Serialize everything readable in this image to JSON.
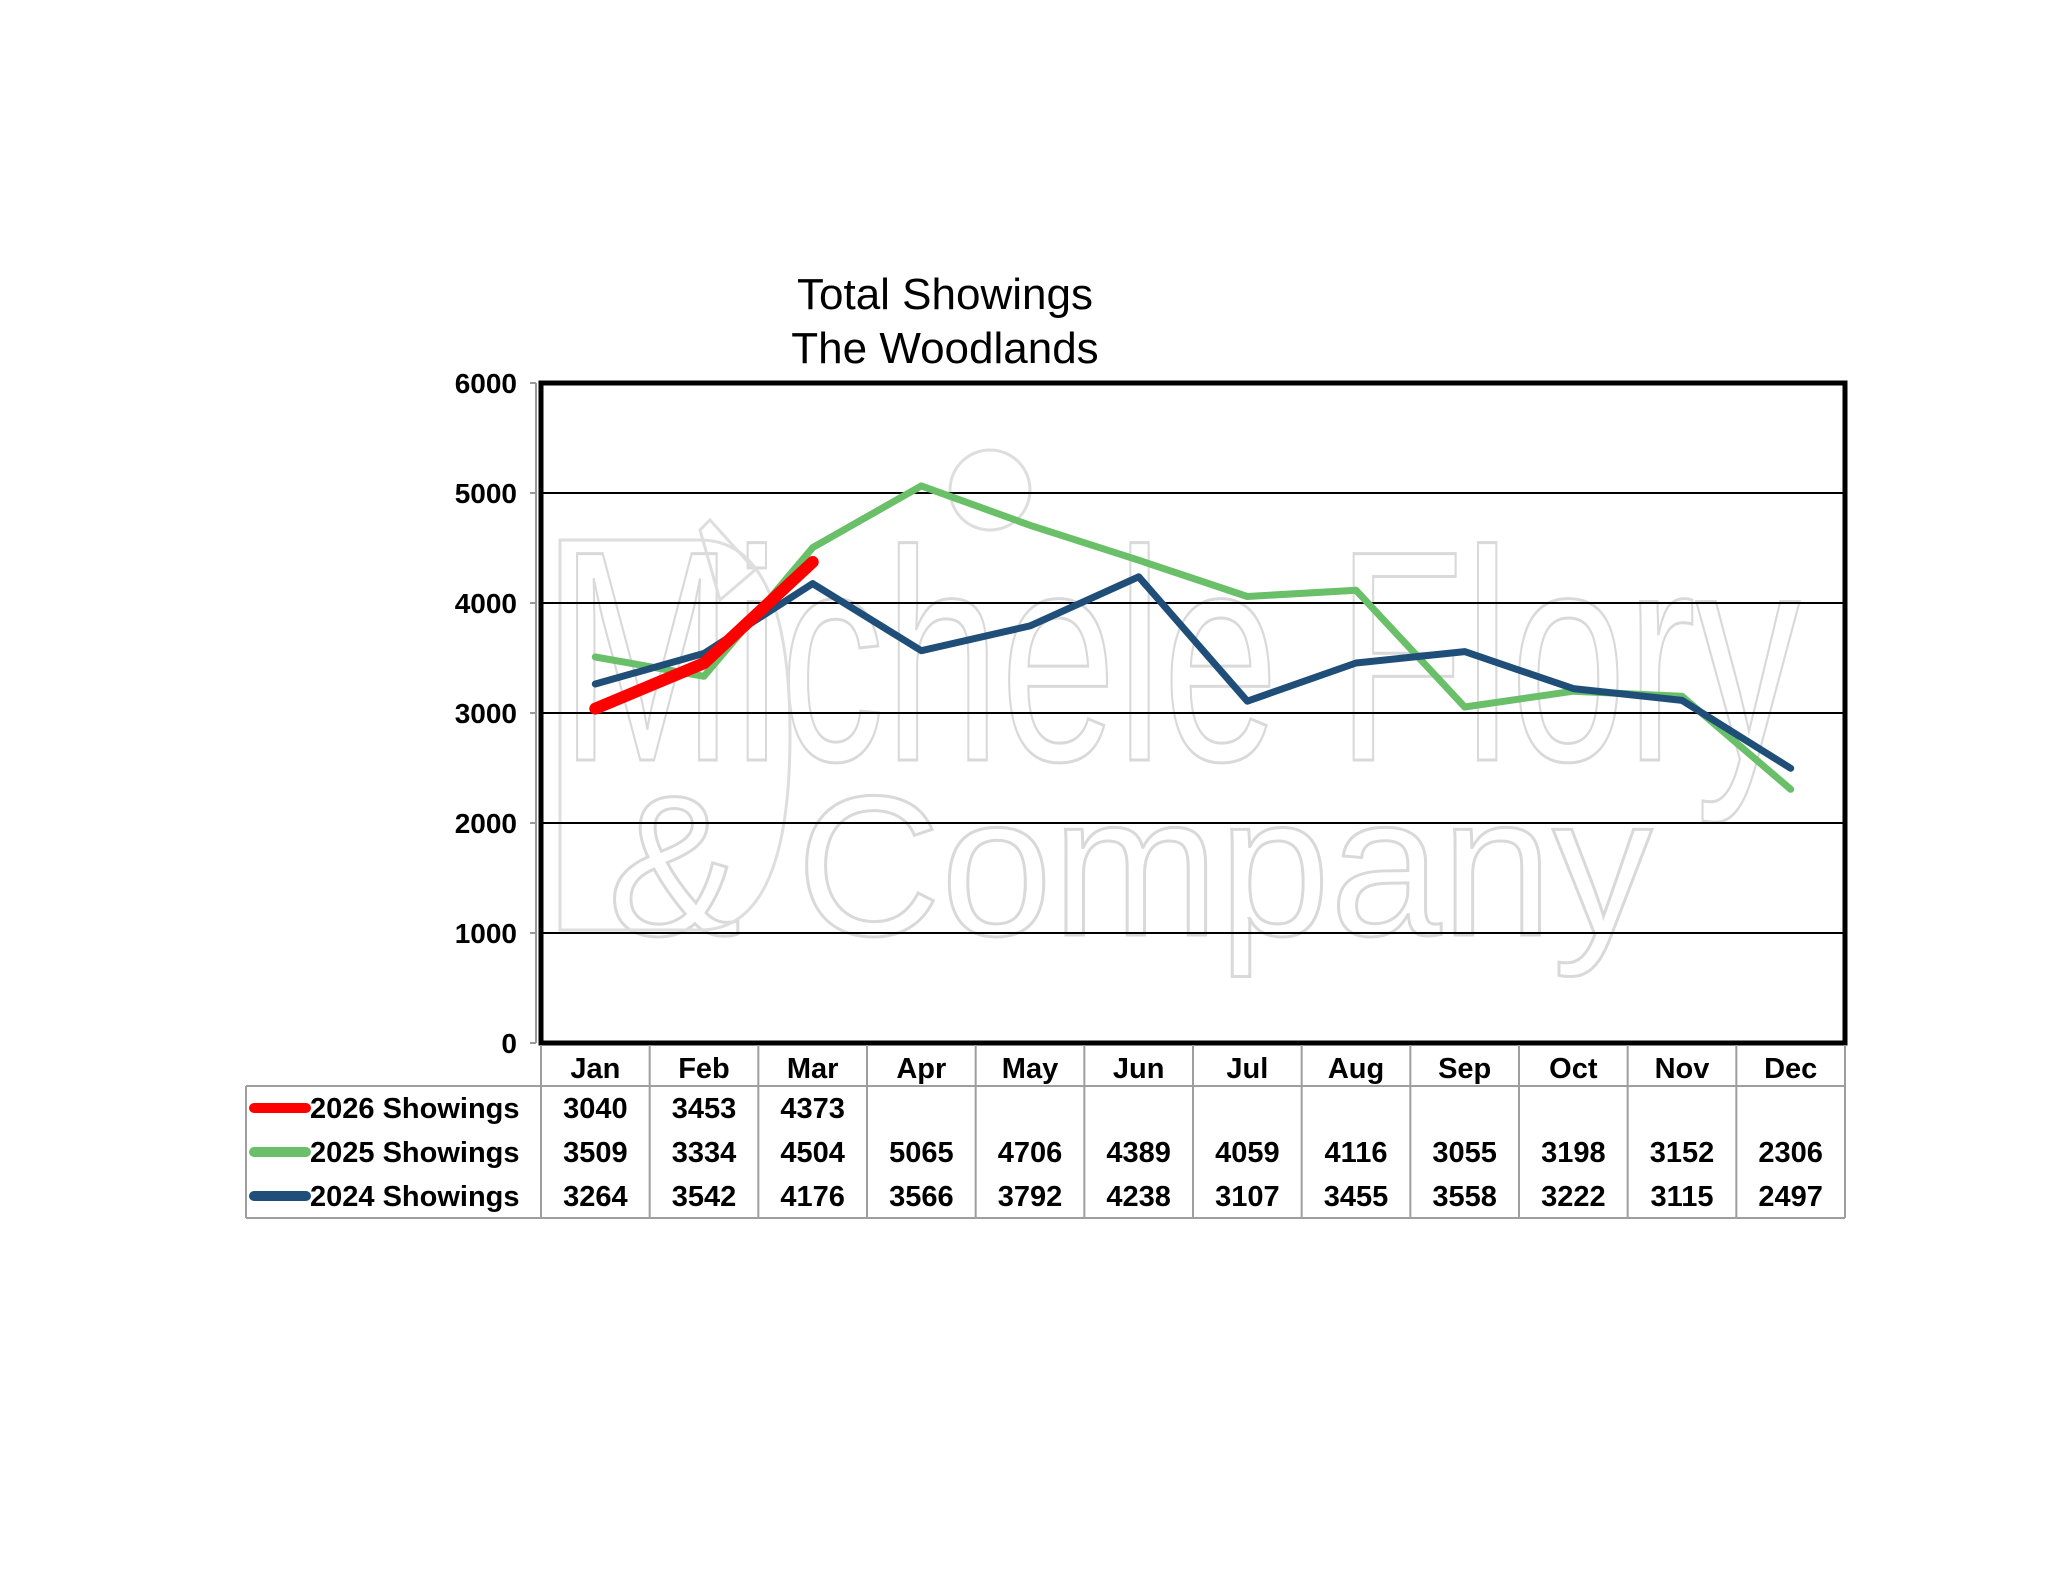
{
  "chart_data": {
    "type": "line",
    "title": [
      "Total Showings",
      "The Woodlands"
    ],
    "categories": [
      "Jan",
      "Feb",
      "Mar",
      "Apr",
      "May",
      "Jun",
      "Jul",
      "Aug",
      "Sep",
      "Oct",
      "Nov",
      "Dec"
    ],
    "ylim": [
      0,
      6000
    ],
    "yticks": [
      0,
      1000,
      2000,
      3000,
      4000,
      5000,
      6000
    ],
    "grid": true,
    "legend": "data-table",
    "series": [
      {
        "name": "2026 Showings",
        "color": "#ff0000",
        "values": [
          3040,
          3453,
          4373,
          null,
          null,
          null,
          null,
          null,
          null,
          null,
          null,
          null
        ]
      },
      {
        "name": "2025 Showings",
        "color": "#6abf69",
        "values": [
          3509,
          3334,
          4504,
          5065,
          4706,
          4389,
          4059,
          4116,
          3055,
          3198,
          3152,
          2306
        ]
      },
      {
        "name": "2024 Showings",
        "color": "#1f4e79",
        "values": [
          3264,
          3542,
          4176,
          3566,
          3792,
          4238,
          3107,
          3455,
          3558,
          3222,
          3115,
          2497
        ]
      }
    ]
  },
  "watermark": {
    "line1": "Michele Flory",
    "line2": "& Company"
  }
}
